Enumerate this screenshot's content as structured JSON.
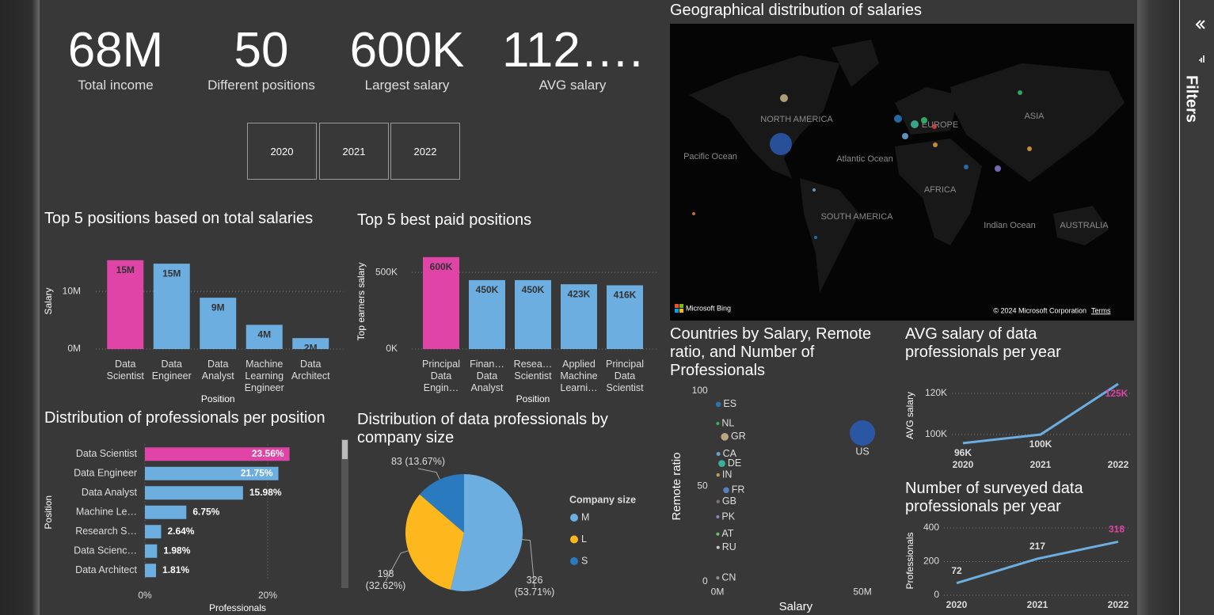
{
  "kpis": [
    {
      "value": "68M",
      "label": "Total income"
    },
    {
      "value": "50",
      "label": "Different positions"
    },
    {
      "value": "600K",
      "label": "Largest salary"
    },
    {
      "value": "112….",
      "label": "AVG salary"
    }
  ],
  "slicer": {
    "options": [
      "2020",
      "2021",
      "2022"
    ]
  },
  "map": {
    "title": "Geographical distribution of salaries",
    "labels": [
      "NORTH AMERICA",
      "EUROPE",
      "ASIA",
      "Pacific Ocean",
      "Atlantic Ocean",
      "AFRICA",
      "SOUTH AMERICA",
      "Indian Ocean",
      "AUSTRALIA"
    ],
    "attribution": {
      "brand": "Microsoft Bing",
      "copyright": "© 2024 Microsoft Corporation",
      "terms": "Terms"
    }
  },
  "filters_pane": {
    "title": "Filters"
  },
  "chart_data": [
    {
      "type": "bar",
      "title": "Top 5 positions based on total salaries",
      "x_label": "Position",
      "y_label": "Salary",
      "categories": [
        "Data Scientist",
        "Data Engineer",
        "Data Analyst",
        "Machine Learning Engineer",
        "Data Architect"
      ],
      "values": [
        15.4,
        14.8,
        8.9,
        4.2,
        1.9
      ],
      "value_labels": [
        "15M",
        "15M",
        "9M",
        "4M",
        "2M"
      ],
      "colors": [
        "#e044a7",
        "#6caee0",
        "#6caee0",
        "#6caee0",
        "#6caee0"
      ],
      "ylim": [
        0,
        16.6
      ],
      "yticks": [
        {
          "value": 0,
          "label": "0M"
        },
        {
          "value": 10,
          "label": "10M"
        }
      ],
      "grid": true
    },
    {
      "type": "bar",
      "title": "Top 5 best paid positions",
      "x_label": "Position",
      "y_label": "Top earners salary",
      "categories": [
        "Principal Data Engin…",
        "Finan… Data Analyst",
        "Resea… Scientist",
        "Applied Machine Learni…",
        "Principal Data Scientist"
      ],
      "values": [
        600,
        450,
        450,
        423,
        416
      ],
      "value_labels": [
        "600K",
        "450K",
        "450K",
        "423K",
        "416K"
      ],
      "colors": [
        "#e044a7",
        "#6caee0",
        "#6caee0",
        "#6caee0",
        "#6caee0"
      ],
      "ylim": [
        0,
        620
      ],
      "yticks": [
        {
          "value": 0,
          "label": "0K"
        },
        {
          "value": 500,
          "label": "500K"
        }
      ],
      "grid": true
    },
    {
      "type": "bar",
      "orientation": "horizontal",
      "title": "Distribution of professionals per position",
      "x_label": "Professionals",
      "y_label": "Position",
      "categories": [
        "Data Scientist",
        "Data Engineer",
        "Data Analyst",
        "Machine Le…",
        "Research S…",
        "Data Scienc…",
        "Data Architect"
      ],
      "values": [
        23.56,
        21.75,
        15.98,
        6.75,
        2.64,
        1.98,
        1.81
      ],
      "value_labels": [
        "23.56%",
        "21.75%",
        "15.98%",
        "6.75%",
        "2.64%",
        "1.98%",
        "1.81%"
      ],
      "colors": [
        "#e044a7",
        "#6caee0",
        "#6caee0",
        "#6caee0",
        "#6caee0",
        "#6caee0",
        "#6caee0"
      ],
      "xlim": [
        0,
        25
      ],
      "xticks": [
        {
          "value": 0,
          "label": "0%"
        },
        {
          "value": 20,
          "label": "20%"
        }
      ],
      "grid": true
    },
    {
      "type": "pie",
      "title": "Distribution of data professionals by company size",
      "legend_title": "Company size",
      "categories": [
        "M",
        "L",
        "S"
      ],
      "values": [
        326,
        198,
        83
      ],
      "value_labels": [
        "326 (53.71%)",
        "198 (32.62%)",
        "83 (13.67%)"
      ],
      "colors": [
        "#6caee0",
        "#fdb81e",
        "#2a7ac0"
      ]
    },
    {
      "type": "scatter",
      "title": "Countries by Salary, Remote ratio, and Number of Professionals",
      "x_label": "Salary",
      "y_label": "Remote ratio",
      "labels": [
        "ES",
        "NL",
        "GR",
        "CA",
        "DE",
        "IN",
        "FR",
        "GB",
        "PK",
        "AT",
        "RU",
        "CN",
        "US"
      ],
      "x": [
        0.3,
        0.1,
        2.5,
        0.3,
        1.5,
        0.2,
        3,
        0.2,
        0.1,
        0.1,
        0.2,
        0.1,
        50
      ],
      "y": [
        93,
        83,
        76,
        67,
        62,
        56,
        48,
        42,
        34,
        25,
        18,
        2,
        78
      ],
      "sizes": [
        14,
        4,
        30,
        8,
        25,
        6,
        18,
        6,
        3,
        3,
        2,
        2,
        332
      ],
      "colors": [
        "#2a7ac0",
        "#2fbf71",
        "#c8b48a",
        "#6caee0",
        "#3bbf9f",
        "#c8a86a",
        "#5a8ad0",
        "#8a7a7a",
        "#a08ad0",
        "#70d070",
        "#d8d8d8",
        "#999999",
        "#2a5ab0"
      ],
      "xlim": [
        -2,
        56
      ],
      "xticks": [
        {
          "value": 0,
          "label": "0M"
        },
        {
          "value": 50,
          "label": "50M"
        }
      ],
      "ylim": [
        -3,
        103
      ],
      "yticks": [
        0,
        50,
        100
      ]
    },
    {
      "type": "line",
      "title": "AVG salary of data professionals per year",
      "y_label": "AVG salary",
      "categories": [
        "2020",
        "2021",
        "2022"
      ],
      "values": [
        95.8,
        100,
        124.6
      ],
      "value_labels": [
        "96K",
        "100K",
        "125K"
      ],
      "color": "#6caee0",
      "value_label_colors": [
        "#dddddd",
        "#dddddd",
        "#e044a7"
      ],
      "ylim": [
        92,
        126.5
      ],
      "yticks": [
        {
          "value": 100,
          "label": "100K"
        },
        {
          "value": 120,
          "label": "120K"
        }
      ],
      "grid": true
    },
    {
      "type": "line",
      "title": "Number of surveyed data professionals per year",
      "y_label": "Professionals",
      "categories": [
        "2020",
        "2021",
        "2022"
      ],
      "values": [
        72,
        217,
        318
      ],
      "color": "#6caee0",
      "value_label_colors": [
        "#dddddd",
        "#dddddd",
        "#e044a7"
      ],
      "ylim": [
        0,
        410
      ],
      "yticks": [
        0,
        200,
        400
      ],
      "grid": true
    }
  ]
}
